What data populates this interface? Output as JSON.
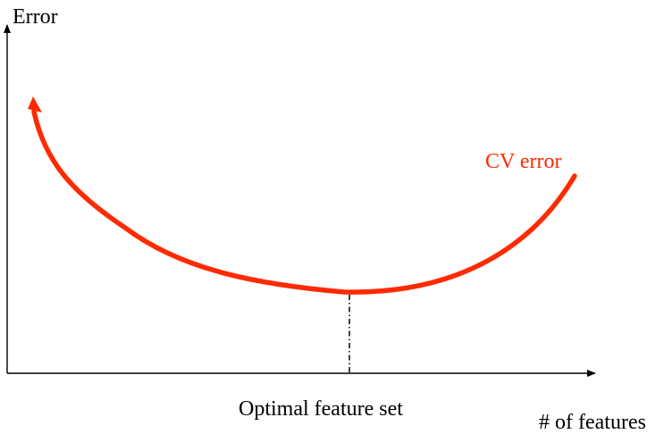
{
  "y_axis": {
    "label": "Error"
  },
  "x_axis": {
    "label": "# of features"
  },
  "curve": {
    "label": "CV error",
    "color": "#ff2a00"
  },
  "optimum": {
    "label": "Optimal feature set"
  },
  "colors": {
    "axis": "#000000",
    "curve": "#ff2a00"
  }
}
